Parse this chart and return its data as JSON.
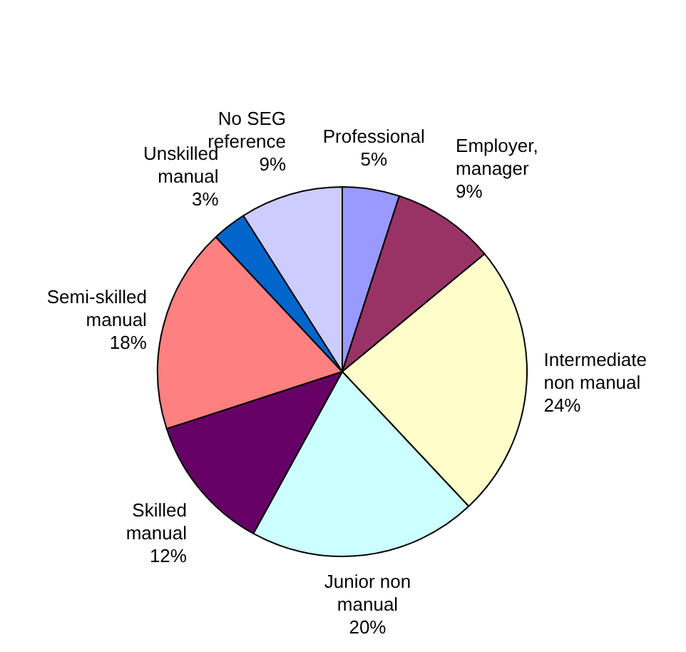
{
  "chart_data": {
    "type": "pie",
    "categories": [
      "Professional",
      "Employer, manager",
      "Intermediate non manual",
      "Junior non manual",
      "Skilled manual",
      "Semi-skilled manual",
      "Unskilled manual",
      "No SEG reference"
    ],
    "values": [
      5,
      9,
      24,
      20,
      12,
      18,
      3,
      9
    ],
    "value_labels": [
      "5%",
      "9%",
      "24%",
      "20%",
      "12%",
      "18%",
      "3%",
      "9%"
    ],
    "colors": [
      "#9999ff",
      "#993366",
      "#ffffcc",
      "#ccffff",
      "#660066",
      "#ff8080",
      "#0066cc",
      "#ccccff"
    ],
    "legend": false
  }
}
